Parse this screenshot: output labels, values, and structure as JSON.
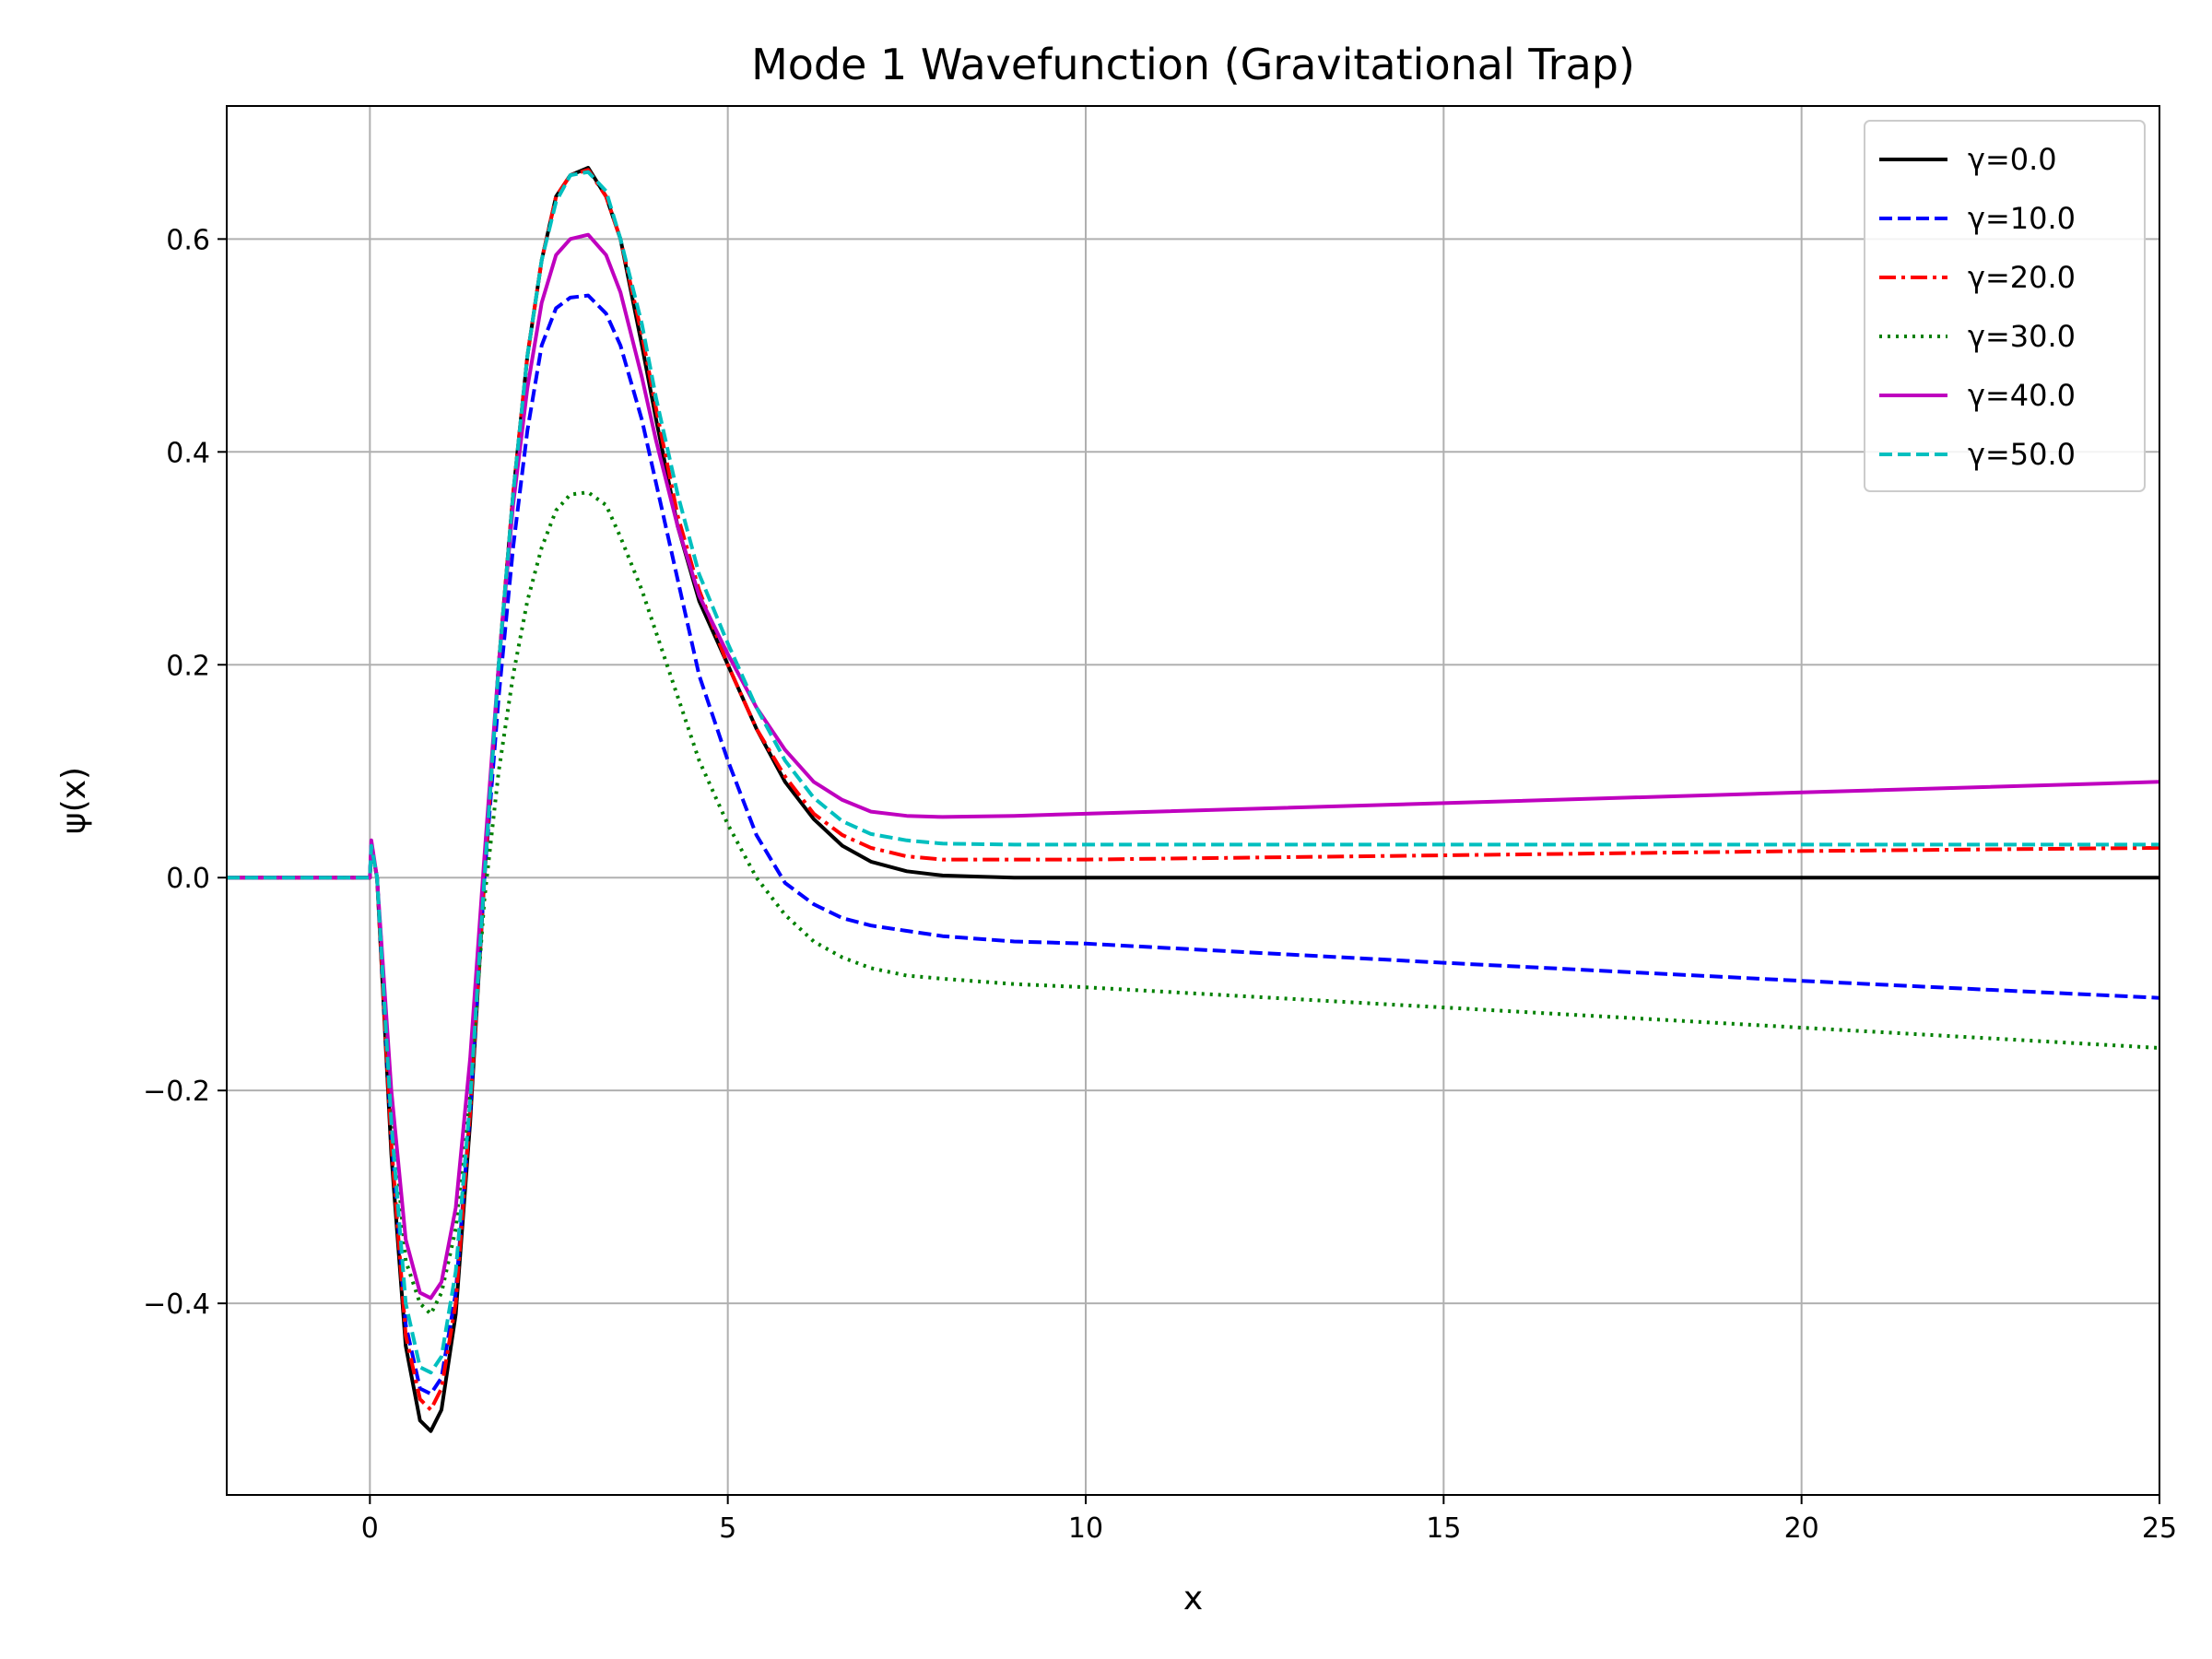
{
  "chart_data": {
    "type": "line",
    "title": "Mode 1 Wavefunction (Gravitational Trap)",
    "xlabel": "x",
    "ylabel": "ψ(x)",
    "xlim": [
      -2,
      25
    ],
    "ylim": [
      -0.58,
      0.725
    ],
    "xticks": [
      0,
      5,
      10,
      15,
      20,
      25
    ],
    "xtick_labels": [
      "0",
      "5",
      "10",
      "15",
      "20",
      "25"
    ],
    "yticks": [
      -0.4,
      -0.2,
      0.0,
      0.2,
      0.4,
      0.6
    ],
    "ytick_labels": [
      "−0.4",
      "−0.2",
      "0.0",
      "0.2",
      "0.4",
      "0.6"
    ],
    "grid": true,
    "legend_position": "top-right",
    "series": [
      {
        "name": "γ=0.0",
        "color": "#000000",
        "style": "solid",
        "x": [
          -2,
          0,
          0.02,
          0.1,
          0.3,
          0.5,
          0.7,
          0.85,
          1.0,
          1.2,
          1.4,
          1.6,
          1.8,
          2.0,
          2.2,
          2.4,
          2.6,
          2.8,
          3.05,
          3.3,
          3.5,
          3.8,
          4.0,
          4.3,
          4.6,
          5.0,
          5.4,
          5.8,
          6.2,
          6.6,
          7.0,
          7.5,
          8.0,
          8.5,
          9.0,
          10,
          15,
          20,
          25
        ],
        "y": [
          0,
          0,
          0.03,
          0.0,
          -0.26,
          -0.44,
          -0.51,
          -0.52,
          -0.5,
          -0.41,
          -0.23,
          0.0,
          0.2,
          0.36,
          0.49,
          0.58,
          0.64,
          0.66,
          0.667,
          0.64,
          0.6,
          0.5,
          0.43,
          0.33,
          0.26,
          0.2,
          0.14,
          0.09,
          0.055,
          0.03,
          0.015,
          0.006,
          0.002,
          0.001,
          0.0,
          0.0,
          0.0,
          0.0,
          0.0
        ]
      },
      {
        "name": "γ=10.0",
        "color": "#0000ff",
        "style": "dashed",
        "x": [
          -2,
          0,
          0.02,
          0.1,
          0.3,
          0.5,
          0.7,
          0.85,
          1.0,
          1.2,
          1.4,
          1.6,
          1.8,
          2.0,
          2.2,
          2.4,
          2.6,
          2.8,
          3.05,
          3.3,
          3.5,
          3.8,
          4.0,
          4.3,
          4.6,
          5.0,
          5.4,
          5.8,
          6.2,
          6.6,
          7.0,
          7.5,
          8.0,
          9.0,
          10,
          15,
          20,
          25
        ],
        "y": [
          0,
          0,
          0.03,
          0.0,
          -0.24,
          -0.42,
          -0.48,
          -0.485,
          -0.47,
          -0.39,
          -0.22,
          0.0,
          0.17,
          0.31,
          0.42,
          0.5,
          0.535,
          0.545,
          0.547,
          0.53,
          0.5,
          0.43,
          0.37,
          0.28,
          0.19,
          0.11,
          0.04,
          -0.005,
          -0.025,
          -0.038,
          -0.045,
          -0.05,
          -0.055,
          -0.06,
          -0.062,
          -0.08,
          -0.097,
          -0.113
        ]
      },
      {
        "name": "γ=20.0",
        "color": "#ff0000",
        "style": "dashdot",
        "x": [
          -2,
          0,
          0.02,
          0.1,
          0.3,
          0.5,
          0.7,
          0.85,
          1.0,
          1.2,
          1.4,
          1.6,
          1.8,
          2.0,
          2.2,
          2.4,
          2.6,
          2.8,
          3.05,
          3.3,
          3.5,
          3.8,
          4.0,
          4.3,
          4.6,
          5.0,
          5.4,
          5.8,
          6.2,
          6.6,
          7.0,
          7.5,
          8.0,
          9.0,
          10,
          15,
          20,
          25
        ],
        "y": [
          0,
          0,
          0.03,
          0.0,
          -0.25,
          -0.43,
          -0.49,
          -0.5,
          -0.48,
          -0.4,
          -0.22,
          0.0,
          0.2,
          0.36,
          0.49,
          0.58,
          0.64,
          0.66,
          0.665,
          0.64,
          0.6,
          0.51,
          0.44,
          0.34,
          0.27,
          0.2,
          0.14,
          0.095,
          0.06,
          0.04,
          0.028,
          0.02,
          0.017,
          0.017,
          0.017,
          0.021,
          0.025,
          0.028
        ]
      },
      {
        "name": "γ=30.0",
        "color": "#008000",
        "style": "dotted",
        "x": [
          -2,
          0,
          0.02,
          0.1,
          0.3,
          0.5,
          0.7,
          0.85,
          1.0,
          1.2,
          1.4,
          1.6,
          1.8,
          2.0,
          2.2,
          2.4,
          2.6,
          2.8,
          3.05,
          3.3,
          3.5,
          3.8,
          4.0,
          4.3,
          4.6,
          5.0,
          5.4,
          5.8,
          6.2,
          6.6,
          7.0,
          7.5,
          8.0,
          9.0,
          10,
          15,
          20,
          25
        ],
        "y": [
          0,
          0,
          0.03,
          0.0,
          -0.21,
          -0.36,
          -0.4,
          -0.41,
          -0.39,
          -0.33,
          -0.2,
          -0.02,
          0.1,
          0.19,
          0.26,
          0.31,
          0.345,
          0.36,
          0.362,
          0.35,
          0.32,
          0.27,
          0.23,
          0.17,
          0.11,
          0.05,
          0.0,
          -0.035,
          -0.06,
          -0.075,
          -0.085,
          -0.092,
          -0.095,
          -0.1,
          -0.103,
          -0.122,
          -0.141,
          -0.16
        ]
      },
      {
        "name": "γ=40.0",
        "color": "#bf00bf",
        "style": "solid",
        "x": [
          -2,
          0,
          0.02,
          0.1,
          0.3,
          0.5,
          0.7,
          0.85,
          1.0,
          1.2,
          1.4,
          1.6,
          1.8,
          2.0,
          2.2,
          2.4,
          2.6,
          2.8,
          3.05,
          3.3,
          3.5,
          3.8,
          4.0,
          4.3,
          4.6,
          5.0,
          5.4,
          5.8,
          6.2,
          6.6,
          7.0,
          7.5,
          8.0,
          9.0,
          10,
          15,
          20,
          25
        ],
        "y": [
          0,
          0,
          0.035,
          0.0,
          -0.2,
          -0.34,
          -0.39,
          -0.395,
          -0.38,
          -0.31,
          -0.17,
          0.02,
          0.2,
          0.35,
          0.46,
          0.54,
          0.585,
          0.6,
          0.604,
          0.585,
          0.55,
          0.47,
          0.41,
          0.33,
          0.265,
          0.21,
          0.16,
          0.12,
          0.09,
          0.073,
          0.062,
          0.058,
          0.057,
          0.058,
          0.06,
          0.07,
          0.08,
          0.09
        ]
      },
      {
        "name": "γ=50.0",
        "color": "#00bfbf",
        "style": "dashed",
        "x": [
          -2,
          0,
          0.02,
          0.1,
          0.3,
          0.5,
          0.7,
          0.85,
          1.0,
          1.2,
          1.4,
          1.6,
          1.8,
          2.0,
          2.2,
          2.4,
          2.6,
          2.8,
          3.05,
          3.3,
          3.5,
          3.8,
          4.0,
          4.3,
          4.6,
          5.0,
          5.4,
          5.8,
          6.2,
          6.6,
          7.0,
          7.5,
          8.0,
          9.0,
          10,
          15,
          20,
          25
        ],
        "y": [
          0,
          0,
          0.03,
          0.0,
          -0.23,
          -0.4,
          -0.46,
          -0.465,
          -0.45,
          -0.37,
          -0.21,
          0.0,
          0.2,
          0.36,
          0.49,
          0.58,
          0.635,
          0.66,
          0.663,
          0.645,
          0.6,
          0.52,
          0.45,
          0.36,
          0.285,
          0.22,
          0.16,
          0.11,
          0.075,
          0.053,
          0.041,
          0.035,
          0.032,
          0.031,
          0.031,
          0.031,
          0.031,
          0.031
        ]
      }
    ]
  }
}
